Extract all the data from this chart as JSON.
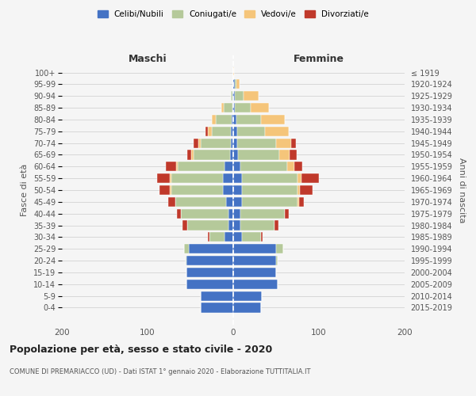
{
  "age_groups": [
    "0-4",
    "5-9",
    "10-14",
    "15-19",
    "20-24",
    "25-29",
    "30-34",
    "35-39",
    "40-44",
    "45-49",
    "50-54",
    "55-59",
    "60-64",
    "65-69",
    "70-74",
    "75-79",
    "80-84",
    "85-89",
    "90-94",
    "95-99",
    "100+"
  ],
  "birth_years": [
    "2015-2019",
    "2010-2014",
    "2005-2009",
    "2000-2004",
    "1995-1999",
    "1990-1994",
    "1985-1989",
    "1980-1984",
    "1975-1979",
    "1970-1974",
    "1965-1969",
    "1960-1964",
    "1955-1959",
    "1950-1954",
    "1945-1949",
    "1940-1944",
    "1935-1939",
    "1930-1934",
    "1925-1929",
    "1920-1924",
    "≤ 1919"
  ],
  "males": {
    "celibe": [
      38,
      38,
      55,
      55,
      55,
      52,
      10,
      6,
      6,
      8,
      12,
      12,
      10,
      4,
      3,
      3,
      2,
      1,
      1,
      0,
      0
    ],
    "coniugato": [
      0,
      0,
      0,
      0,
      1,
      5,
      18,
      48,
      55,
      60,
      60,
      60,
      55,
      42,
      35,
      22,
      18,
      10,
      2,
      0,
      0
    ],
    "vedovo": [
      0,
      0,
      0,
      0,
      0,
      0,
      0,
      0,
      0,
      0,
      2,
      2,
      2,
      3,
      3,
      5,
      5,
      3,
      0,
      0,
      0
    ],
    "divorziato": [
      0,
      0,
      0,
      0,
      0,
      0,
      2,
      5,
      5,
      8,
      12,
      15,
      12,
      5,
      5,
      2,
      0,
      0,
      0,
      0,
      0
    ]
  },
  "females": {
    "nubile": [
      32,
      33,
      52,
      50,
      50,
      50,
      10,
      8,
      8,
      10,
      10,
      10,
      8,
      6,
      5,
      5,
      4,
      2,
      2,
      2,
      0
    ],
    "coniugata": [
      0,
      0,
      0,
      0,
      2,
      8,
      22,
      40,
      52,
      65,
      65,
      65,
      55,
      48,
      45,
      32,
      28,
      18,
      10,
      2,
      0
    ],
    "vedova": [
      0,
      0,
      0,
      0,
      0,
      0,
      0,
      0,
      0,
      2,
      3,
      5,
      8,
      12,
      18,
      28,
      28,
      22,
      18,
      3,
      1
    ],
    "divorziata": [
      0,
      0,
      0,
      0,
      0,
      0,
      2,
      5,
      5,
      5,
      15,
      20,
      10,
      8,
      5,
      0,
      0,
      0,
      0,
      0,
      0
    ]
  },
  "colors": {
    "celibe": "#4472c4",
    "coniugato": "#b5c99a",
    "vedovo": "#f5c57a",
    "divorziato": "#c0392b"
  },
  "xlim": [
    -200,
    200
  ],
  "title": "Popolazione per età, sesso e stato civile - 2020",
  "subtitle": "COMUNE DI PREMARIACCO (UD) - Dati ISTAT 1° gennaio 2020 - Elaborazione TUTTITALIA.IT",
  "ylabel_left": "Fasce di età",
  "ylabel_right": "Anni di nascita",
  "maschi_label": "Maschi",
  "femmine_label": "Femmine",
  "legend_labels": [
    "Celibi/Nubili",
    "Coniugati/e",
    "Vedovi/e",
    "Divorziati/e"
  ],
  "background_color": "#f5f5f5",
  "grid_color": "#cccccc"
}
